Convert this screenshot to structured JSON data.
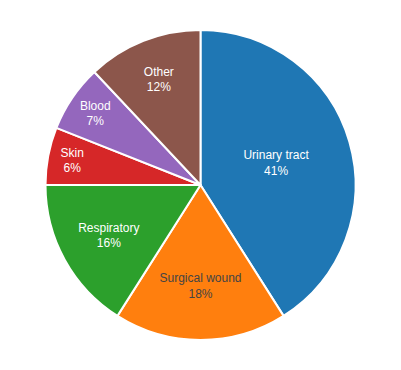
{
  "chart_data": {
    "type": "pie",
    "categories": [
      "Urinary tract",
      "Surgical wound",
      "Respiratory",
      "Skin",
      "Blood",
      "Other"
    ],
    "values": [
      41,
      18,
      16,
      6,
      7,
      12
    ],
    "value_labels": [
      "41%",
      "18%",
      "16%",
      "6%",
      "7%",
      "12%"
    ],
    "data_labels": true
  }
}
